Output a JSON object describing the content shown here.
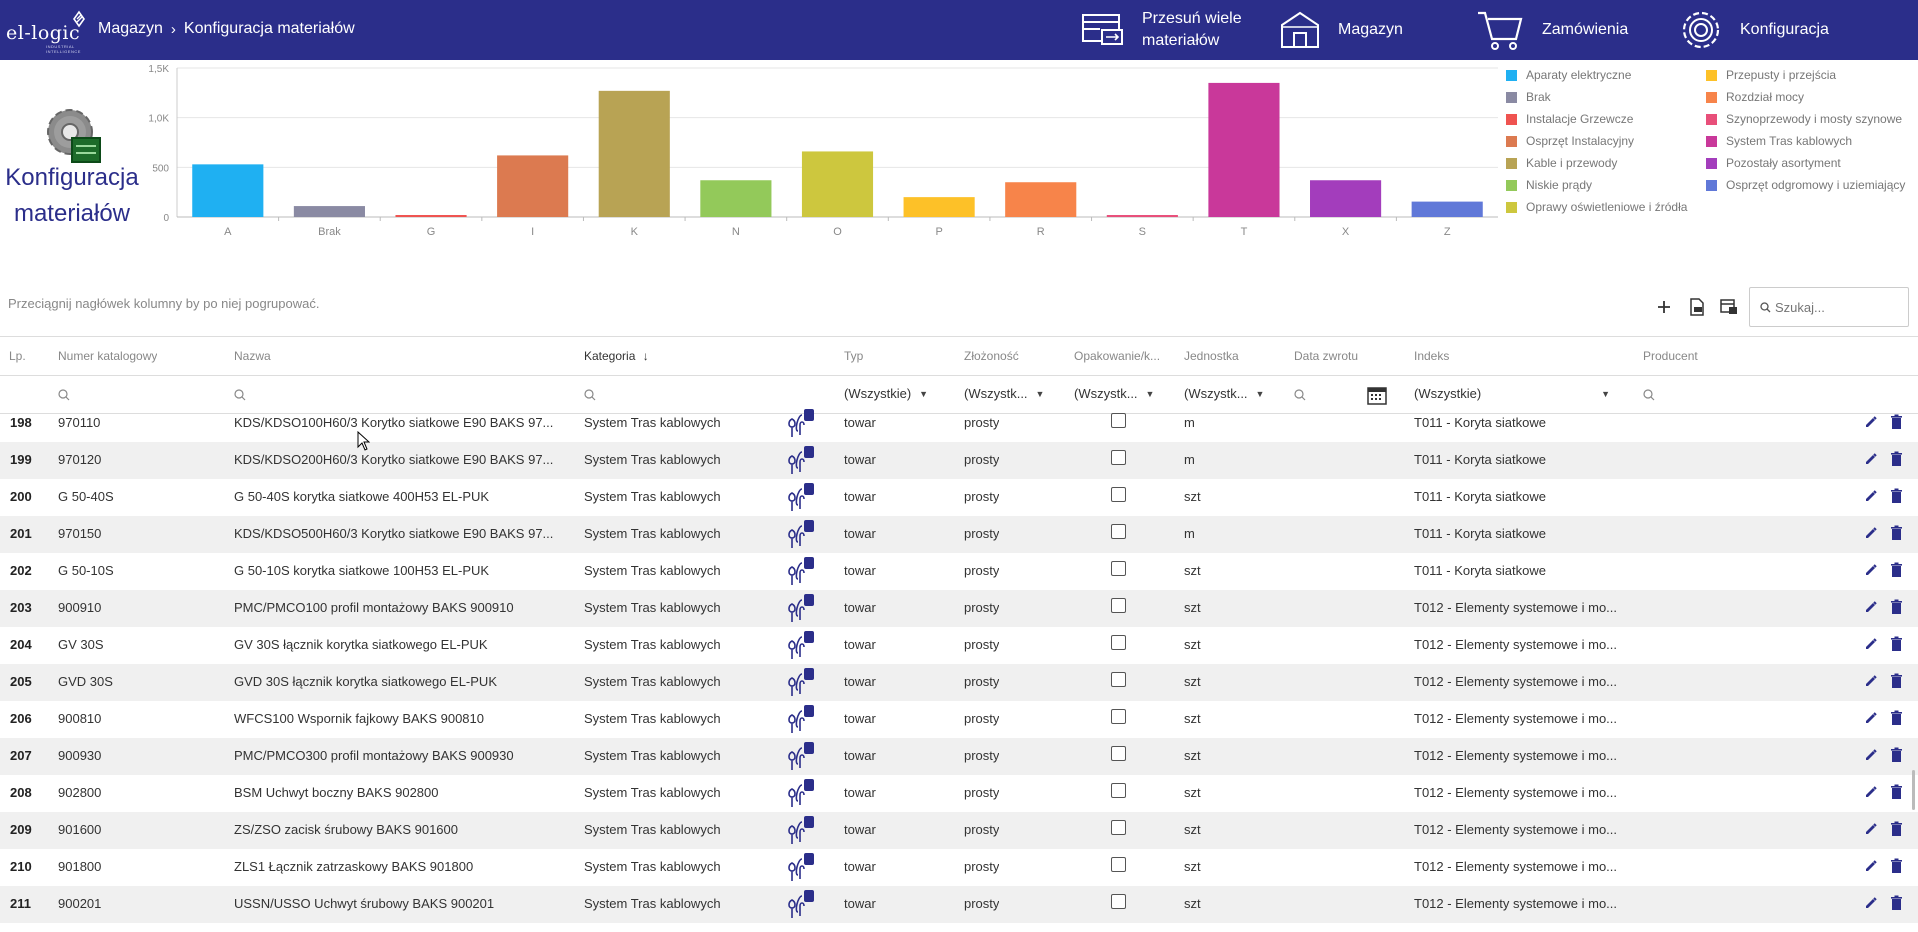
{
  "header": {
    "logo_text": "el-logic",
    "logo_sub": "INDUSTRIAL INTELLIGENCE",
    "breadcrumb": [
      "Magazyn",
      "Konfiguracja materiałów"
    ],
    "nav": [
      {
        "label_line1": "Przesuń wiele",
        "label_line2": "materiałów",
        "icon": "move-items-icon"
      },
      {
        "label_line1": "Magazyn",
        "label_line2": "",
        "icon": "warehouse-icon"
      },
      {
        "label_line1": "Zamówienia",
        "label_line2": "",
        "icon": "cart-icon"
      },
      {
        "label_line1": "Konfiguracja",
        "label_line2": "",
        "icon": "settings-icon"
      }
    ],
    "colors": {
      "bar": "#2b2e8a"
    }
  },
  "page": {
    "title_line1": "Konfiguracja",
    "title_line2": "materiałów"
  },
  "chart_data": {
    "type": "bar",
    "categories": [
      "A",
      "Brak",
      "G",
      "I",
      "K",
      "N",
      "O",
      "P",
      "R",
      "S",
      "T",
      "X",
      "Z"
    ],
    "values": [
      530,
      110,
      20,
      620,
      1270,
      370,
      660,
      200,
      350,
      20,
      1350,
      370,
      155
    ],
    "colors": [
      "#1fb0f2",
      "#8a8aa3",
      "#ef5350",
      "#dc7a50",
      "#b8a354",
      "#93c95a",
      "#cdc73e",
      "#fdc128",
      "#f7844a",
      "#e84f7a",
      "#c9389a",
      "#a33dbc",
      "#6078d8"
    ],
    "ylim": [
      0,
      1500
    ],
    "yticks": [
      "0",
      "500",
      "1,0K",
      "1,5K"
    ],
    "ytick_values": [
      0,
      500,
      1000,
      1500
    ],
    "grid": true,
    "legend_position": "right",
    "legend": [
      {
        "name": "Aparaty elektryczne",
        "color": "#1fb0f2"
      },
      {
        "name": "Brak",
        "color": "#8a8aa3"
      },
      {
        "name": "Instalacje Grzewcze",
        "color": "#ef5350"
      },
      {
        "name": "Osprzęt Instalacyjny",
        "color": "#dc7a50"
      },
      {
        "name": "Kable i przewody",
        "color": "#b8a354"
      },
      {
        "name": "Niskie prądy",
        "color": "#93c95a"
      },
      {
        "name": "Oprawy oświetleniowe i źródła",
        "color": "#cdc73e"
      },
      {
        "name": "Przepusty i przejścia",
        "color": "#fdc128"
      },
      {
        "name": "Rozdział mocy",
        "color": "#f7844a"
      },
      {
        "name": "Szynoprzewody i mosty szynowe",
        "color": "#e84f7a"
      },
      {
        "name": "System Tras kablowych",
        "color": "#c9389a"
      },
      {
        "name": "Pozostały asortyment",
        "color": "#a33dbc"
      },
      {
        "name": "Osprzęt odgromowy i uziemiający",
        "color": "#6078d8"
      }
    ]
  },
  "toolbar": {
    "group_hint": "Przeciągnij nagłówek kolumny by po niej pogrupować.",
    "search_placeholder": "Szukaj..."
  },
  "grid": {
    "columns": [
      "Lp.",
      "Numer katalogowy",
      "Nazwa",
      "Kategoria",
      "Typ",
      "Złożoność",
      "Opakowanie/k...",
      "Jednostka",
      "Data zwrotu",
      "Indeks",
      "Producent"
    ],
    "filters": {
      "typ": "(Wszystkie)",
      "zlozonosc": "(Wszystk...",
      "opakowanie": "(Wszystk...",
      "jednostka": "(Wszystk...",
      "indeks": "(Wszystkie)"
    },
    "rows": [
      {
        "lp": "198",
        "nr": "970110",
        "nazwa": "KDS/KDSO100H60/3 Korytko siatkowe E90 BAKS 97...",
        "kat": "System Tras kablowych",
        "typ": "towar",
        "zl": "prosty",
        "jedn": "m",
        "indeks": "T011 - Koryta siatkowe"
      },
      {
        "lp": "199",
        "nr": "970120",
        "nazwa": "KDS/KDSO200H60/3 Korytko siatkowe E90 BAKS 97...",
        "kat": "System Tras kablowych",
        "typ": "towar",
        "zl": "prosty",
        "jedn": "m",
        "indeks": "T011 - Koryta siatkowe"
      },
      {
        "lp": "200",
        "nr": "G 50-40S",
        "nazwa": "G 50-40S korytka siatkowe 400H53 EL-PUK",
        "kat": "System Tras kablowych",
        "typ": "towar",
        "zl": "prosty",
        "jedn": "szt",
        "indeks": "T011 - Koryta siatkowe"
      },
      {
        "lp": "201",
        "nr": "970150",
        "nazwa": "KDS/KDSO500H60/3 Korytko siatkowe E90 BAKS 97...",
        "kat": "System Tras kablowych",
        "typ": "towar",
        "zl": "prosty",
        "jedn": "m",
        "indeks": "T011 - Koryta siatkowe"
      },
      {
        "lp": "202",
        "nr": "G 50-10S",
        "nazwa": "G 50-10S korytka siatkowe 100H53 EL-PUK",
        "kat": "System Tras kablowych",
        "typ": "towar",
        "zl": "prosty",
        "jedn": "szt",
        "indeks": "T011 - Koryta siatkowe"
      },
      {
        "lp": "203",
        "nr": "900910",
        "nazwa": "PMC/PMCO100 profil montażowy BAKS 900910",
        "kat": "System Tras kablowych",
        "typ": "towar",
        "zl": "prosty",
        "jedn": "szt",
        "indeks": "T012 - Elementy systemowe i mo..."
      },
      {
        "lp": "204",
        "nr": "GV 30S",
        "nazwa": "GV 30S łącznik korytka siatkowego EL-PUK",
        "kat": "System Tras kablowych",
        "typ": "towar",
        "zl": "prosty",
        "jedn": "szt",
        "indeks": "T012 - Elementy systemowe i mo..."
      },
      {
        "lp": "205",
        "nr": "GVD 30S",
        "nazwa": "GVD 30S łącznik korytka siatkowego EL-PUK",
        "kat": "System Tras kablowych",
        "typ": "towar",
        "zl": "prosty",
        "jedn": "szt",
        "indeks": "T012 - Elementy systemowe i mo..."
      },
      {
        "lp": "206",
        "nr": "900810",
        "nazwa": "WFCS100 Wspornik fajkowy BAKS 900810",
        "kat": "System Tras kablowych",
        "typ": "towar",
        "zl": "prosty",
        "jedn": "szt",
        "indeks": "T012 - Elementy systemowe i mo..."
      },
      {
        "lp": "207",
        "nr": "900930",
        "nazwa": "PMC/PMCO300 profil montażowy BAKS 900930",
        "kat": "System Tras kablowych",
        "typ": "towar",
        "zl": "prosty",
        "jedn": "szt",
        "indeks": "T012 - Elementy systemowe i mo..."
      },
      {
        "lp": "208",
        "nr": "902800",
        "nazwa": "BSM Uchwyt boczny BAKS 902800",
        "kat": "System Tras kablowych",
        "typ": "towar",
        "zl": "prosty",
        "jedn": "szt",
        "indeks": "T012 - Elementy systemowe i mo..."
      },
      {
        "lp": "209",
        "nr": "901600",
        "nazwa": "ZS/ZSO zacisk śrubowy BAKS 901600",
        "kat": "System Tras kablowych",
        "typ": "towar",
        "zl": "prosty",
        "jedn": "szt",
        "indeks": "T012 - Elementy systemowe i mo..."
      },
      {
        "lp": "210",
        "nr": "901800",
        "nazwa": "ZLS1 Łącznik zatrzaskowy BAKS 901800",
        "kat": "System Tras kablowych",
        "typ": "towar",
        "zl": "prosty",
        "jedn": "szt",
        "indeks": "T012 - Elementy systemowe i mo..."
      },
      {
        "lp": "211",
        "nr": "900201",
        "nazwa": "USSN/USSO Uchwyt śrubowy BAKS 900201",
        "kat": "System Tras kablowych",
        "typ": "towar",
        "zl": "prosty",
        "jedn": "szt",
        "indeks": "T012 - Elementy systemowe i mo..."
      }
    ]
  }
}
